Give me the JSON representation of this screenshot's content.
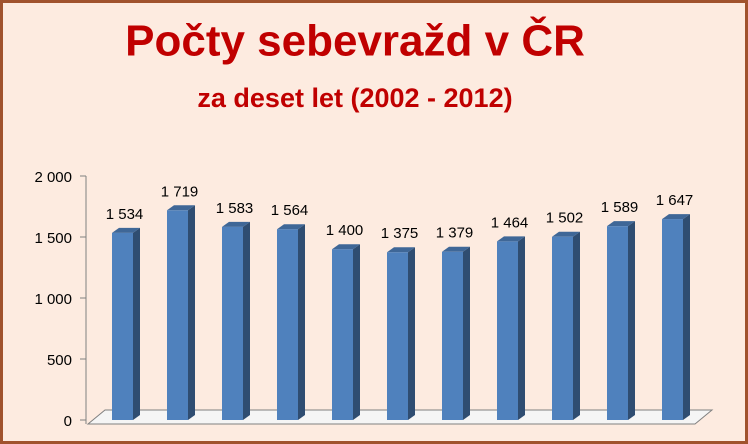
{
  "chart_data": {
    "type": "bar3d",
    "title": "Počty sebevražd v ČR",
    "subtitle": "za deset let (2002 - 2012)",
    "categories": [
      null,
      null,
      null,
      null,
      null,
      null,
      null,
      null,
      null,
      null,
      null
    ],
    "values": [
      1534,
      1719,
      1583,
      1564,
      1400,
      1375,
      1379,
      1464,
      1502,
      1589,
      1647
    ],
    "value_labels": [
      "1 534",
      "1 719",
      "1 583",
      "1 564",
      "1 400",
      "1 375",
      "1 379",
      "1 464",
      "1 502",
      "1 589",
      "1 647"
    ],
    "color": "#4f81bd",
    "ylim": [
      0,
      2000
    ],
    "yticks": [
      0,
      500,
      {
        "value": 1000,
        "label": "1 000"
      },
      {
        "value": 1500,
        "label": "1 500"
      },
      {
        "value": 2000,
        "label": "2 000"
      }
    ],
    "grid": false
  }
}
